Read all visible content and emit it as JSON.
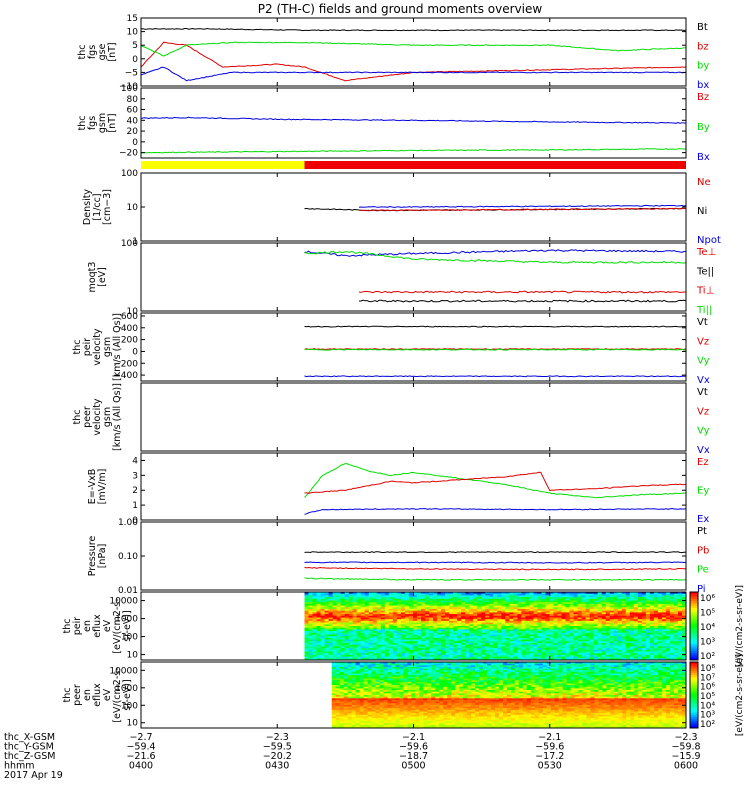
{
  "title": "P2 (TH-C) fields and ground moments overview",
  "colors": {
    "black": "#000000",
    "red": "#dd0000",
    "green": "#00dd00",
    "blue": "#0000dd",
    "yellow": "#ffff00"
  },
  "quality_bar": {
    "segments": [
      {
        "from": "0400",
        "to": "0436",
        "color": "#ffff00"
      },
      {
        "from": "0436",
        "to": "0600",
        "color": "#ee0000"
      }
    ]
  },
  "chart_data": [
    {
      "type": "line",
      "ylabel": [
        "thc",
        "fgs",
        "gse",
        "[nT]"
      ],
      "ylim": [
        -10,
        15
      ],
      "yscale": "linear",
      "yticks": [
        "15",
        "10",
        "5",
        "0",
        "−5",
        "−10"
      ],
      "legend": [
        {
          "label": "Bt",
          "color": "#000000"
        },
        {
          "label": "bz",
          "color": "#dd0000"
        },
        {
          "label": "by",
          "color": "#00dd00"
        },
        {
          "label": "bx",
          "color": "#0000dd"
        }
      ],
      "series": [
        {
          "name": "Bt",
          "color": "#000000",
          "x": [
            "0400",
            "0406",
            "0415",
            "0436",
            "0500",
            "0530",
            "0600"
          ],
          "values": [
            11,
            11,
            11,
            10.5,
            10.5,
            10.5,
            10.5
          ]
        },
        {
          "name": "bz",
          "color": "#dd0000",
          "x": [
            "0400",
            "0405",
            "0410",
            "0418",
            "0430",
            "0436",
            "0445",
            "0500",
            "0530",
            "0600"
          ],
          "values": [
            -3,
            6,
            5,
            -3,
            -2,
            -3,
            -8,
            -5,
            -4,
            -3
          ]
        },
        {
          "name": "by",
          "color": "#00dd00",
          "x": [
            "0400",
            "0405",
            "0410",
            "0420",
            "0436",
            "0500",
            "0530",
            "0545",
            "0600"
          ],
          "values": [
            5,
            1,
            5,
            6,
            6,
            5,
            5,
            3,
            4
          ]
        },
        {
          "name": "bx",
          "color": "#0000dd",
          "x": [
            "0400",
            "0405",
            "0410",
            "0420",
            "0436",
            "0500",
            "0530",
            "0600"
          ],
          "values": [
            -6,
            -3,
            -8,
            -5,
            -5,
            -5,
            -5,
            -5
          ]
        }
      ]
    },
    {
      "type": "line",
      "ylabel": [
        "thc",
        "fgs",
        "gsm",
        "[nT]"
      ],
      "ylim": [
        -30,
        100
      ],
      "yscale": "linear",
      "yticks": [
        "100",
        "80",
        "60",
        "40",
        "20",
        "0",
        "−20"
      ],
      "legend": [
        {
          "label": "Bz",
          "color": "#dd0000"
        },
        {
          "label": "By",
          "color": "#00dd00"
        },
        {
          "label": "Bx",
          "color": "#0000dd"
        }
      ],
      "series": [
        {
          "name": "Bx",
          "color": "#0000dd",
          "x": [
            "0400",
            "0410",
            "0430",
            "0500",
            "0530",
            "0600"
          ],
          "values": [
            44,
            45,
            42,
            40,
            37,
            35
          ]
        },
        {
          "name": "By",
          "color": "#00dd00",
          "x": [
            "0400",
            "0430",
            "0500",
            "0530",
            "0600"
          ],
          "values": [
            -20,
            -18,
            -16,
            -15,
            -13
          ]
        }
      ]
    },
    {
      "type": "line",
      "ylabel": [
        "Density",
        "[1/cc]",
        "[cm−3]"
      ],
      "ylim": [
        1,
        100
      ],
      "yscale": "log",
      "yticks": [
        "100",
        "10",
        "1"
      ],
      "legend": [
        {
          "label": "Ne",
          "color": "#dd0000"
        },
        {
          "label": "Ni",
          "color": "#000000"
        },
        {
          "label": "Npot",
          "color": "#0000dd"
        }
      ],
      "series": [
        {
          "name": "Ni",
          "color": "#000000",
          "x": [
            "0436",
            "0450",
            "0500",
            "0530",
            "0600"
          ],
          "values": [
            9,
            8,
            8,
            8.5,
            9
          ]
        },
        {
          "name": "Ne",
          "color": "#dd0000",
          "x": [
            "0448",
            "0500",
            "0530",
            "0600"
          ],
          "values": [
            8,
            8,
            8.5,
            9
          ]
        },
        {
          "name": "Npot",
          "color": "#0000dd",
          "x": [
            "0448",
            "0500",
            "0530",
            "0600"
          ],
          "values": [
            10,
            10,
            10.5,
            11
          ]
        }
      ]
    },
    {
      "type": "line",
      "ylabel": [
        "moqt3",
        "[eV]"
      ],
      "ylim": [
        10,
        100
      ],
      "yscale": "log",
      "yticks": [
        "100",
        "10"
      ],
      "legend": [
        {
          "label": "Te⊥",
          "color": "#dd0000"
        },
        {
          "label": "Te||",
          "color": "#000000"
        },
        {
          "label": "Ti⊥",
          "color": "#dd0000"
        },
        {
          "label": "Ti||",
          "color": "#00dd00"
        }
      ],
      "series": [
        {
          "name": "Ti⊥",
          "color": "#0000dd",
          "x": [
            "0436",
            "0445",
            "0500",
            "0530",
            "0600"
          ],
          "values": [
            75,
            65,
            70,
            78,
            75
          ]
        },
        {
          "name": "Ti||",
          "color": "#00dd00",
          "x": [
            "0436",
            "0445",
            "0500",
            "0530",
            "0600"
          ],
          "values": [
            70,
            75,
            58,
            52,
            52
          ]
        },
        {
          "name": "Te⊥",
          "color": "#dd0000",
          "x": [
            "0448",
            "0500",
            "0530",
            "0600"
          ],
          "values": [
            19,
            19,
            19,
            19
          ]
        },
        {
          "name": "Te||",
          "color": "#000000",
          "x": [
            "0448",
            "0500",
            "0530",
            "0600"
          ],
          "values": [
            14,
            14,
            14,
            14
          ]
        }
      ]
    },
    {
      "type": "line",
      "ylabel": [
        "thc",
        "peir",
        "velocity",
        "gsm",
        "[km/s (All Qs)]"
      ],
      "ylim": [
        -500,
        650
      ],
      "yscale": "linear",
      "yticks": [
        "600",
        "400",
        "200",
        "0",
        "−200",
        "−400",
        "−600"
      ],
      "legend": [
        {
          "label": "Vt",
          "color": "#000000"
        },
        {
          "label": "Vz",
          "color": "#dd0000"
        },
        {
          "label": "Vy",
          "color": "#00dd00"
        },
        {
          "label": "Vx",
          "color": "#0000dd"
        }
      ],
      "series": [
        {
          "name": "Vt",
          "color": "#000000",
          "x": [
            "0436",
            "0500",
            "0530",
            "0600"
          ],
          "values": [
            420,
            420,
            420,
            420
          ]
        },
        {
          "name": "Vz",
          "color": "#dd0000",
          "x": [
            "0436",
            "0500",
            "0530",
            "0600"
          ],
          "values": [
            40,
            40,
            40,
            40
          ]
        },
        {
          "name": "Vy",
          "color": "#00dd00",
          "x": [
            "0436",
            "0500",
            "0530",
            "0600"
          ],
          "values": [
            30,
            30,
            30,
            30
          ]
        },
        {
          "name": "Vx",
          "color": "#0000dd",
          "x": [
            "0436",
            "0500",
            "0530",
            "0600"
          ],
          "values": [
            -420,
            -420,
            -420,
            -420
          ]
        }
      ]
    },
    {
      "type": "line",
      "ylabel": [
        "thc",
        "peer",
        "velocity",
        "gsm",
        "[km/s (All Qs)]"
      ],
      "ylim": [
        0,
        1
      ],
      "yscale": "linear",
      "yticks": [],
      "legend": [
        {
          "label": "Vt",
          "color": "#000000"
        },
        {
          "label": "Vz",
          "color": "#dd0000"
        },
        {
          "label": "Vy",
          "color": "#00dd00"
        },
        {
          "label": "Vx",
          "color": "#0000dd"
        }
      ],
      "series": []
    },
    {
      "type": "line",
      "ylabel": [
        "E=-VxB",
        "[mV/m]"
      ],
      "ylim": [
        0,
        4.5
      ],
      "yscale": "linear",
      "yticks": [
        "4",
        "3",
        "2",
        "1",
        "0"
      ],
      "legend": [
        {
          "label": "Ez",
          "color": "#dd0000"
        },
        {
          "label": "Ey",
          "color": "#00dd00"
        },
        {
          "label": "Ex",
          "color": "#0000dd"
        }
      ],
      "series": [
        {
          "name": "Ey",
          "color": "#00dd00",
          "x": [
            "0436",
            "0440",
            "0445",
            "0450",
            "0455",
            "0500",
            "0510",
            "0520",
            "0530",
            "0540",
            "0550",
            "0600"
          ],
          "values": [
            1.5,
            3,
            3.8,
            3.3,
            3.0,
            3.2,
            2.8,
            2.4,
            1.8,
            1.5,
            1.7,
            1.8
          ]
        },
        {
          "name": "Ez",
          "color": "#dd0000",
          "x": [
            "0436",
            "0445",
            "0455",
            "0500",
            "0510",
            "0520",
            "0528",
            "0530",
            "0540",
            "0550",
            "0600"
          ],
          "values": [
            1.8,
            2.0,
            2.6,
            2.5,
            2.7,
            2.9,
            3.2,
            2.0,
            2.1,
            2.3,
            2.4
          ]
        },
        {
          "name": "Ex",
          "color": "#0000dd",
          "x": [
            "0436",
            "0440",
            "0500",
            "0530",
            "0600"
          ],
          "values": [
            0.4,
            0.7,
            0.75,
            0.7,
            0.75
          ]
        }
      ]
    },
    {
      "type": "line",
      "ylabel": [
        "Pressure",
        "[nPa]"
      ],
      "ylim": [
        0.01,
        1
      ],
      "yscale": "log",
      "yticks": [
        "1.00",
        "0.10",
        "0.01"
      ],
      "legend": [
        {
          "label": "Pt",
          "color": "#000000"
        },
        {
          "label": "Pb",
          "color": "#dd0000"
        },
        {
          "label": "Pe",
          "color": "#00dd00"
        },
        {
          "label": "Pi",
          "color": "#0000dd"
        }
      ],
      "series": [
        {
          "name": "Pt",
          "color": "#000000",
          "x": [
            "0436",
            "0500",
            "0530",
            "0600"
          ],
          "values": [
            0.13,
            0.13,
            0.13,
            0.13
          ]
        },
        {
          "name": "Pi",
          "color": "#0000dd",
          "x": [
            "0436",
            "0500",
            "0530",
            "0600"
          ],
          "values": [
            0.065,
            0.065,
            0.063,
            0.065
          ]
        },
        {
          "name": "Pb",
          "color": "#dd0000",
          "x": [
            "0436",
            "0500",
            "0530",
            "0600"
          ],
          "values": [
            0.045,
            0.042,
            0.04,
            0.042
          ]
        },
        {
          "name": "Pe",
          "color": "#00dd00",
          "x": [
            "0436",
            "0500",
            "0530",
            "0600"
          ],
          "values": [
            0.022,
            0.02,
            0.02,
            0.02
          ]
        }
      ]
    },
    {
      "type": "heatmap",
      "ylabel": [
        "thc",
        "peir",
        "en",
        "eflux",
        "eV",
        "[eV/(cm2-s-",
        "sr-eV)]"
      ],
      "ylim": [
        5,
        30000
      ],
      "yscale": "log",
      "yticks": [
        "10000",
        "1000",
        "100",
        "10"
      ],
      "x_start": "0436",
      "x_end": "0600",
      "colorbar": {
        "label": "[eV/(cm2-s-sr-eV)]",
        "ticks": [
          "10⁶",
          "10⁵",
          "10⁴",
          "10³",
          "10²"
        ]
      }
    },
    {
      "type": "heatmap",
      "ylabel": [
        "thc",
        "peer",
        "en",
        "eflux",
        "eV",
        "[eV/(cm2-s-",
        "sr-eV)]"
      ],
      "ylim": [
        5,
        30000
      ],
      "yscale": "log",
      "yticks": [
        "10000",
        "1000",
        "100",
        "10"
      ],
      "x_start": "0442",
      "x_end": "0600",
      "colorbar": {
        "label": "[eV/(cm2-s-sr-eV)]",
        "ticks": [
          "10⁸",
          "10⁷",
          "10⁶",
          "10⁵",
          "10⁴",
          "10³",
          "10²"
        ]
      }
    }
  ],
  "xaxis": {
    "rows": [
      {
        "label": "thc_X-GSM",
        "values": [
          "−2.7",
          "−2.3",
          "−2.1",
          "−2.1",
          "−2.3"
        ]
      },
      {
        "label": "thc_Y-GSM",
        "values": [
          "−59.4",
          "−59.5",
          "−59.6",
          "−59.6",
          "−59.8"
        ]
      },
      {
        "label": "thc_Z-GSM",
        "values": [
          "−21.6",
          "−20.2",
          "−18.7",
          "−17.2",
          "−15.9"
        ]
      },
      {
        "label": "hhmm",
        "values": [
          "0400",
          "0430",
          "0500",
          "0530",
          "0600"
        ]
      }
    ],
    "date": "2017 Apr 19"
  }
}
